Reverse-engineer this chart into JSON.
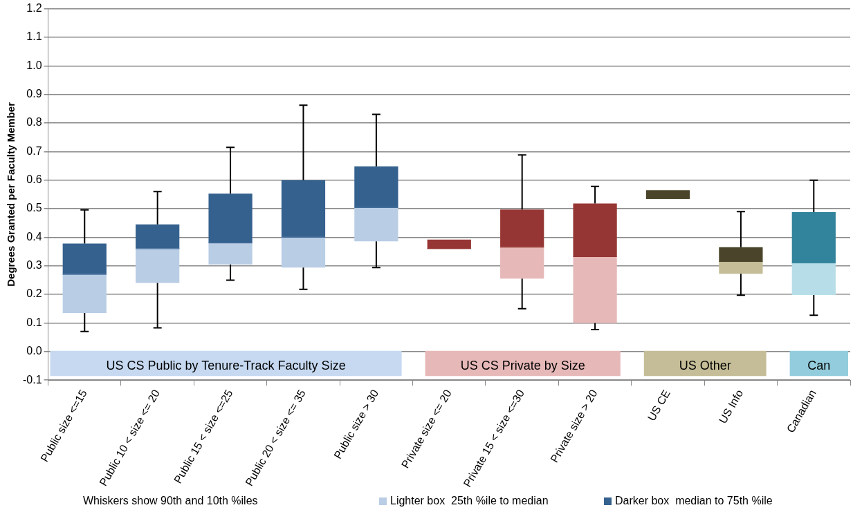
{
  "chart_data": {
    "type": "box",
    "ylabel": "Degrees Granted per Faculty Member",
    "categories": [
      "Public size <=15",
      "Public 10 < size <= 20",
      "Public 15 < size <=25",
      "Public 20 < size <= 35",
      "Public size > 30",
      "Private size <= 20",
      "Private 15 < size <=30",
      "Private size > 20",
      "US CE",
      "US Info",
      "Canadian"
    ],
    "series": [
      {
        "name": "Lighter box  25th %ile to median",
        "colors": [
          "#b9cde5",
          "#b9cde5",
          "#b9cde5",
          "#b9cde5",
          "#b9cde5",
          "#e6b9b8",
          "#e6b9b8",
          "#e6b9b8",
          "#c4bd97",
          "#c4bd97",
          "#b7dee8"
        ],
        "boxes": [
          {
            "low": 0.07,
            "q1": 0.135,
            "median": 0.27,
            "q3": 0.27,
            "high": 0.27
          },
          {
            "low": 0.083,
            "q1": 0.24,
            "median": 0.36,
            "q3": 0.36,
            "high": 0.36
          },
          {
            "low": 0.25,
            "q1": 0.305,
            "median": 0.38,
            "q3": 0.38,
            "high": 0.38
          },
          {
            "low": 0.218,
            "q1": 0.294,
            "median": 0.4,
            "q3": 0.4,
            "high": 0.4
          },
          {
            "low": 0.294,
            "q1": 0.386,
            "median": 0.504,
            "q3": 0.504,
            "high": 0.504
          },
          null,
          {
            "low": 0.15,
            "q1": 0.255,
            "median": 0.365,
            "q3": 0.365,
            "high": 0.365
          },
          {
            "low": 0.077,
            "q1": 0.1,
            "median": 0.332,
            "q3": 0.332,
            "high": 0.332
          },
          null,
          {
            "low": 0.197,
            "q1": 0.272,
            "median": 0.315,
            "q3": 0.315,
            "high": 0.315
          },
          {
            "low": 0.127,
            "q1": 0.198,
            "median": 0.31,
            "q3": 0.31,
            "high": 0.31
          }
        ]
      },
      {
        "name": "Darker box  median to 75th %ile",
        "colors": [
          "#35618f",
          "#35618f",
          "#35618f",
          "#35618f",
          "#35618f",
          "#963634",
          "#963634",
          "#963634",
          "#4a452a",
          "#4a452a",
          "#31849b"
        ],
        "boxes": [
          {
            "low": 0.27,
            "q1": 0.27,
            "median": 0.27,
            "q3": 0.378,
            "high": 0.496
          },
          {
            "low": 0.36,
            "q1": 0.36,
            "median": 0.36,
            "q3": 0.445,
            "high": 0.56
          },
          {
            "low": 0.38,
            "q1": 0.38,
            "median": 0.38,
            "q3": 0.553,
            "high": 0.715
          },
          {
            "low": 0.4,
            "q1": 0.4,
            "median": 0.4,
            "q3": 0.6,
            "high": 0.862
          },
          {
            "low": 0.504,
            "q1": 0.504,
            "median": 0.504,
            "q3": 0.648,
            "high": 0.83
          },
          {
            "low": 0.36,
            "q1": 0.36,
            "median": 0.36,
            "q3": 0.392,
            "high": 0.392
          },
          {
            "low": 0.365,
            "q1": 0.365,
            "median": 0.365,
            "q3": 0.497,
            "high": 0.688
          },
          {
            "low": 0.332,
            "q1": 0.332,
            "median": 0.332,
            "q3": 0.518,
            "high": 0.578
          },
          {
            "low": 0.535,
            "q1": 0.535,
            "median": 0.535,
            "q3": 0.565,
            "high": 0.565
          },
          {
            "low": 0.315,
            "q1": 0.315,
            "median": 0.315,
            "q3": 0.365,
            "high": 0.49
          },
          {
            "low": 0.31,
            "q1": 0.31,
            "median": 0.31,
            "q3": 0.488,
            "high": 0.6
          }
        ]
      }
    ],
    "bands": [
      {
        "axis": "x",
        "from": "Public size <=15",
        "to": "Public size > 30",
        "label": "US CS Public by Tenure-Track Faculty Size",
        "color": "#c6d9f1"
      },
      {
        "axis": "x",
        "from": "Private size <= 20",
        "to": "Private size > 20",
        "label": "US CS Private by Size",
        "color": "#e6b9b8"
      },
      {
        "axis": "x",
        "from": "US CE",
        "to": "US Info",
        "label": "US Other",
        "color": "#c4bd97"
      },
      {
        "axis": "x",
        "from": "Canadian",
        "to": "Canadian",
        "label": "Can",
        "color": "#93cddd"
      }
    ],
    "annotations": [
      "Whiskers show 90th and 10th %iles"
    ],
    "ylim": [
      -0.1,
      1.2
    ],
    "yticks": [
      {
        "value": -0.1,
        "label": "-0.1"
      },
      {
        "value": 0,
        "label": "0.0"
      },
      0.1,
      0.2,
      0.3,
      0.4,
      0.5,
      0.6,
      0.7,
      0.8,
      0.9,
      {
        "value": 1,
        "label": "1.0"
      },
      1.1,
      1.2
    ],
    "grid": "y",
    "legend": "bottom"
  }
}
